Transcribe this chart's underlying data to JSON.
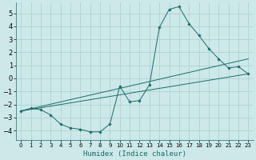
{
  "xlabel": "Humidex (Indice chaleur)",
  "xlim": [
    -0.5,
    23.5
  ],
  "ylim": [
    -4.7,
    5.8
  ],
  "yticks": [
    -4,
    -3,
    -2,
    -1,
    0,
    1,
    2,
    3,
    4,
    5
  ],
  "xticks": [
    0,
    1,
    2,
    3,
    4,
    5,
    6,
    7,
    8,
    9,
    10,
    11,
    12,
    13,
    14,
    15,
    16,
    17,
    18,
    19,
    20,
    21,
    22,
    23
  ],
  "bg_color": "#cde8e8",
  "line_color": "#1a6b6b",
  "grid_color": "#aacece",
  "line1_x": [
    0,
    1,
    2,
    3,
    4,
    5,
    6,
    7,
    8,
    9,
    10,
    11,
    12,
    13,
    14,
    15,
    16,
    17,
    18,
    19,
    20,
    21,
    22,
    23
  ],
  "line1_y": [
    -2.5,
    -2.3,
    -2.4,
    -2.8,
    -3.5,
    -3.8,
    -3.9,
    -4.1,
    -4.1,
    -3.5,
    -0.6,
    -1.8,
    -1.7,
    -0.5,
    3.9,
    5.3,
    5.5,
    4.2,
    3.3,
    2.3,
    1.5,
    0.8,
    0.9,
    0.35
  ],
  "line2_x": [
    0,
    23
  ],
  "line2_y": [
    -2.5,
    0.35
  ],
  "line3_x": [
    0,
    23
  ],
  "line3_y": [
    -2.5,
    1.5
  ],
  "marker": "D",
  "marker_size": 1.8,
  "line_width": 0.7
}
